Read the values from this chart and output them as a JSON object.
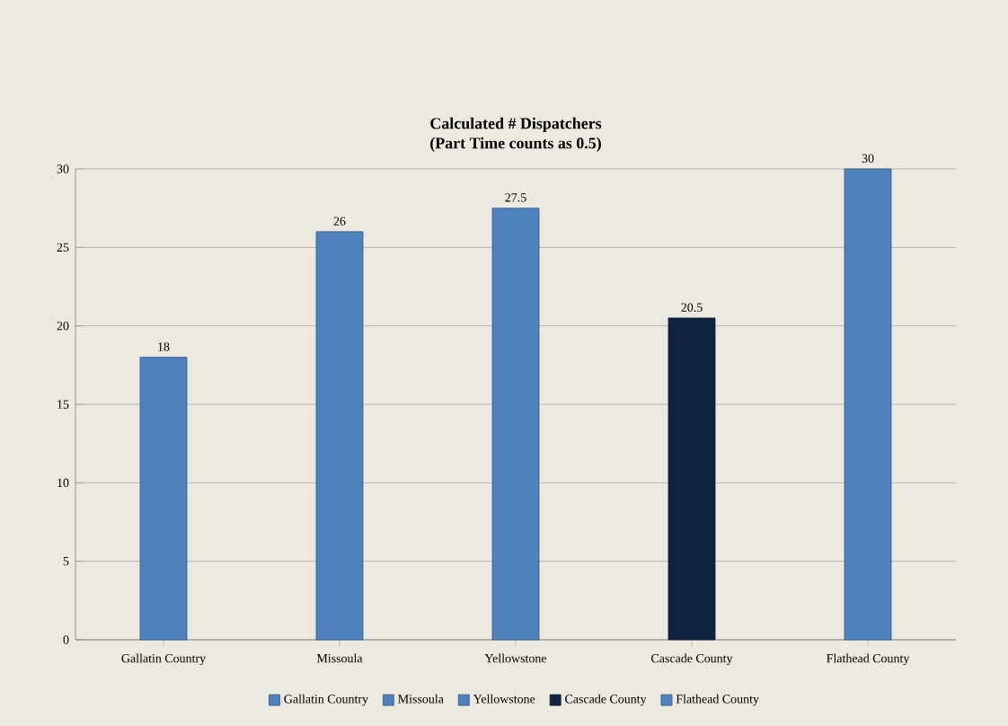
{
  "chart_data": {
    "type": "bar",
    "title": "Calculated # Dispatchers\n(Part Time counts as 0.5)",
    "categories": [
      "Gallatin Country",
      "Missoula",
      "Yellowstone",
      "Cascade County",
      "Flathead County"
    ],
    "series": [
      {
        "name": "Gallatin Country",
        "color": "#4f81bd",
        "values": [
          18,
          null,
          null,
          null,
          null
        ]
      },
      {
        "name": "Missoula",
        "color": "#4f81bd",
        "values": [
          null,
          26,
          null,
          null,
          null
        ]
      },
      {
        "name": "Yellowstone",
        "color": "#4f81bd",
        "values": [
          null,
          null,
          27.5,
          null,
          null
        ]
      },
      {
        "name": "Cascade County",
        "color": "#10243e",
        "values": [
          null,
          null,
          null,
          20.5,
          null
        ]
      },
      {
        "name": "Flathead County",
        "color": "#4f81bd",
        "values": [
          null,
          null,
          null,
          null,
          30
        ]
      }
    ],
    "ylim": [
      0,
      30
    ],
    "yticks": [
      0,
      5,
      10,
      15,
      20,
      25,
      30
    ],
    "grid": "y",
    "legend": "bottom",
    "data_labels": true
  }
}
